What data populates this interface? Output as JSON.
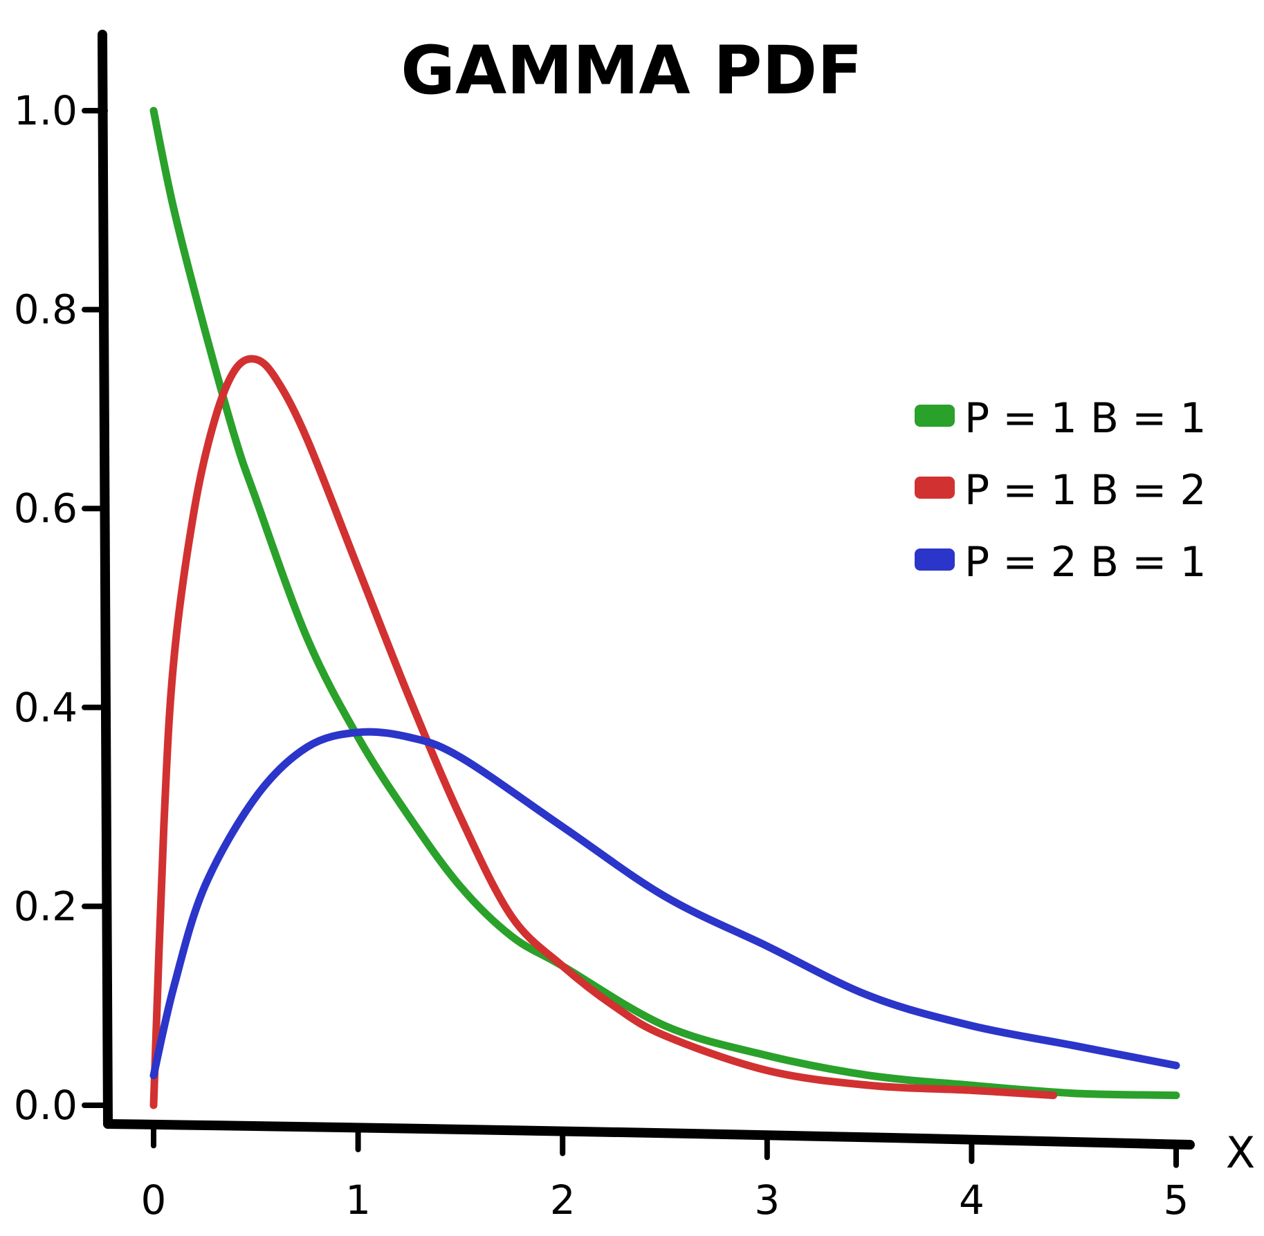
{
  "chart_data": {
    "type": "line",
    "title": "GAMMA PDF",
    "xlabel": "X",
    "ylabel": "",
    "xlim": [
      0,
      5
    ],
    "ylim": [
      0,
      1.0
    ],
    "x_ticks": [
      "0",
      "1",
      "2",
      "3",
      "4",
      "5"
    ],
    "y_ticks": [
      "0.0",
      "0.2",
      "0.4",
      "0.6",
      "0.8",
      "1.0"
    ],
    "grid": false,
    "legend_position": "right",
    "series": [
      {
        "name": "P = 1  B = 1",
        "color": "#2aa12a",
        "x": [
          0,
          0.1,
          0.25,
          0.4,
          0.5,
          0.75,
          1.0,
          1.25,
          1.5,
          1.75,
          2.0,
          2.5,
          3.0,
          3.5,
          4.0,
          4.5,
          5.0
        ],
        "y": [
          1.0,
          0.9,
          0.78,
          0.67,
          0.61,
          0.47,
          0.37,
          0.29,
          0.22,
          0.17,
          0.14,
          0.08,
          0.05,
          0.03,
          0.02,
          0.012,
          0.01
        ]
      },
      {
        "name": "P = 1  B = 2",
        "color": "#d23131",
        "x": [
          0,
          0.05,
          0.1,
          0.2,
          0.3,
          0.4,
          0.5,
          0.6,
          0.75,
          1.0,
          1.25,
          1.5,
          1.75,
          2.0,
          2.25,
          2.5,
          3.0,
          3.5,
          4.0,
          4.4
        ],
        "y": [
          0.0,
          0.28,
          0.45,
          0.6,
          0.69,
          0.74,
          0.75,
          0.73,
          0.67,
          0.54,
          0.41,
          0.29,
          0.19,
          0.14,
          0.1,
          0.07,
          0.035,
          0.02,
          0.015,
          0.01
        ]
      },
      {
        "name": "P = 2 B = 1",
        "color": "#2b35c9",
        "x": [
          0,
          0.1,
          0.25,
          0.5,
          0.75,
          1.0,
          1.25,
          1.5,
          2.0,
          2.5,
          3.0,
          3.5,
          4.0,
          4.5,
          5.0
        ],
        "y": [
          0.03,
          0.12,
          0.22,
          0.31,
          0.36,
          0.375,
          0.37,
          0.35,
          0.28,
          0.21,
          0.16,
          0.11,
          0.08,
          0.06,
          0.04
        ]
      }
    ]
  }
}
